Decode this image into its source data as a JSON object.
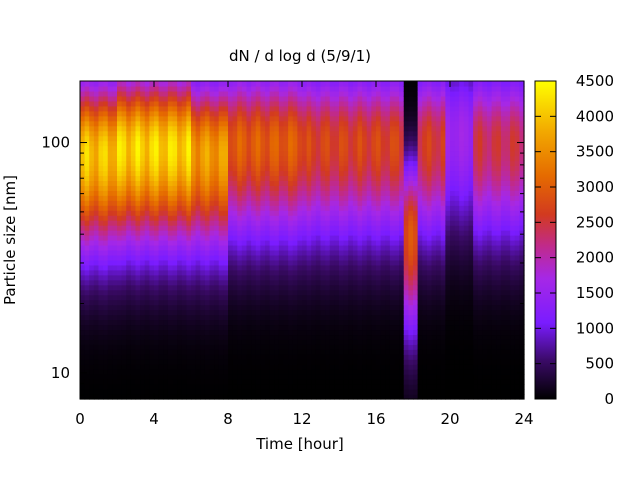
{
  "chart_data": {
    "type": "heatmap",
    "title": "dN / d log d (5/9/1)",
    "xlabel": "Time [hour]",
    "ylabel": "Particle size [nm]",
    "x_range": [
      0,
      24
    ],
    "x_ticks": [
      "0",
      "4",
      "8",
      "12",
      "16",
      "20",
      "24"
    ],
    "y_scale": "log",
    "y_range": [
      7.7,
      185
    ],
    "y_ticks": [
      {
        "value": 10,
        "label": "10"
      },
      {
        "value": 100,
        "label": "100"
      }
    ],
    "colorbar": {
      "range": [
        0,
        4500
      ],
      "ticks": [
        "0",
        "500",
        "1000",
        "1500",
        "2000",
        "2500",
        "3000",
        "3500",
        "4000",
        "4500"
      ],
      "colormap": "gnuplot-black-purple-red-orange-yellow"
    },
    "distribution": {
      "description_free": true,
      "intervals": [
        {
          "t0": 0,
          "t1": 2,
          "peak_nm": 90,
          "peak_value": 4300
        },
        {
          "t0": 2,
          "t1": 6,
          "peak_nm": 95,
          "peak_value": 4450
        },
        {
          "t0": 6,
          "t1": 8,
          "peak_nm": 90,
          "peak_value": 3900
        },
        {
          "t0": 8,
          "t1": 12,
          "peak_nm": 100,
          "peak_value": 3200
        },
        {
          "t0": 12,
          "t1": 17.5,
          "peak_nm": 100,
          "peak_value": 2900
        },
        {
          "t0": 17.5,
          "t1": 18.2,
          "peak_nm": 40,
          "peak_value": 3000
        },
        {
          "t0": 18.2,
          "t1": 19.8,
          "peak_nm": 100,
          "peak_value": 2800
        },
        {
          "t0": 19.8,
          "t1": 21.3,
          "peak_nm": 110,
          "peak_value": 1700
        },
        {
          "t0": 21.3,
          "t1": 24,
          "peak_nm": 100,
          "peak_value": 2600
        }
      ]
    }
  }
}
